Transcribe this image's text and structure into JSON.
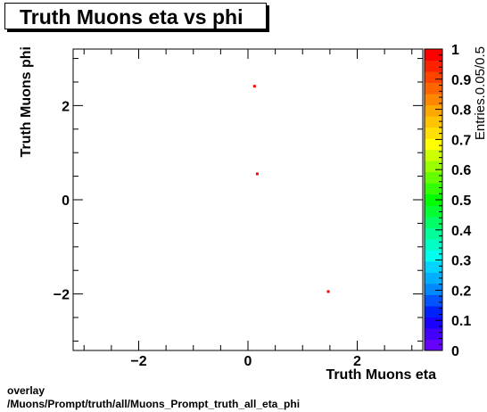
{
  "chart_data": {
    "type": "heatmap",
    "title": "Truth Muons eta vs phi",
    "xlabel": "Truth Muons eta",
    "ylabel": "Truth Muons phi",
    "zlabel": "Entries.0.05/0.5",
    "xlim": [
      -3.2,
      3.2
    ],
    "ylim": [
      -3.2,
      3.2
    ],
    "zlim": [
      0,
      1
    ],
    "x_ticks": [
      -2,
      0,
      2
    ],
    "x_tick_labels": [
      "−2",
      "0",
      "2"
    ],
    "y_ticks": [
      -2,
      0,
      2
    ],
    "y_tick_labels": [
      "−2",
      "0",
      "2"
    ],
    "z_ticks": [
      0,
      0.1,
      0.2,
      0.3,
      0.4,
      0.5,
      0.6,
      0.7,
      0.8,
      0.9,
      1
    ],
    "z_tick_labels": [
      "0",
      "0.1",
      "0.2",
      "0.3",
      "0.4",
      "0.5",
      "0.6",
      "0.7",
      "0.8",
      "0.9",
      "1"
    ],
    "grid": false,
    "points": [
      {
        "x": 0.12,
        "y": 2.41,
        "value": 1
      },
      {
        "x": 0.17,
        "y": 0.55,
        "value": 1
      },
      {
        "x": 1.47,
        "y": -1.95,
        "value": 1
      }
    ],
    "palette": [
      "#6600ff",
      "#4400ff",
      "#1a00ff",
      "#0022ff",
      "#0055ff",
      "#0088ff",
      "#00b0ff",
      "#00d4ff",
      "#00ffee",
      "#00ffc4",
      "#00ff99",
      "#00ff66",
      "#00ff33",
      "#00ff00",
      "#33ff00",
      "#66ff00",
      "#99ff00",
      "#ccff00",
      "#ffff00",
      "#ffe000",
      "#ffc400",
      "#ffa800",
      "#ff8800",
      "#ff6600",
      "#ff4400",
      "#ff2200",
      "#ff0000"
    ]
  },
  "footer": {
    "line1": "overlay",
    "line2": "/Muons/Prompt/truth/all/Muons_Prompt_truth_all_eta_phi"
  }
}
